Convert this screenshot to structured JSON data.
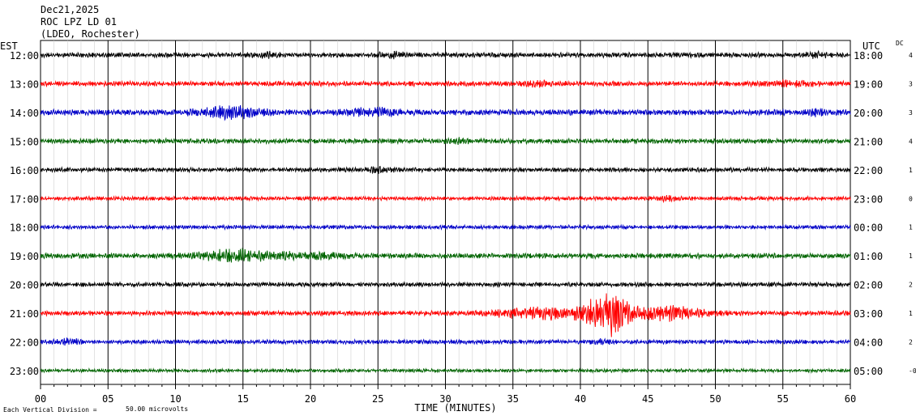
{
  "header": {
    "date": "Dec21,2025",
    "station": "ROC LPZ LD 01",
    "network": "(LDEO, Rochester)"
  },
  "chart_data": {
    "type": "line",
    "title": "",
    "xlabel": "TIME (MINUTES)",
    "x_ticks": [
      "00",
      "05",
      "10",
      "15",
      "20",
      "25",
      "30",
      "35",
      "40",
      "45",
      "50",
      "55",
      "60"
    ],
    "xlim": [
      0,
      60
    ],
    "left_axis_label": "EST",
    "right_axis_label": "UTC",
    "dc_label": "DC",
    "scale_note": "Each Vertical Division =",
    "scale_value": "50.00 microvolts",
    "colors": [
      "#000000",
      "#ff0000",
      "#0000c8",
      "#006400"
    ],
    "series": [
      {
        "est": "12:00",
        "utc": "18:00",
        "dc": "4",
        "amp": 1.0,
        "bursts": [
          {
            "c": 16.5,
            "w": 1.2,
            "a": 0.8
          },
          {
            "c": 26,
            "w": 1.0,
            "a": 0.8
          },
          {
            "c": 57.5,
            "w": 1.2,
            "a": 0.6
          }
        ]
      },
      {
        "est": "13:00",
        "utc": "19:00",
        "dc": "3",
        "amp": 1.0,
        "bursts": [
          {
            "c": 37,
            "w": 1.2,
            "a": 0.7
          },
          {
            "c": 55.5,
            "w": 2.0,
            "a": 0.7
          }
        ]
      },
      {
        "est": "14:00",
        "utc": "20:00",
        "dc": "3",
        "amp": 1.2,
        "bursts": [
          {
            "c": 14,
            "w": 2.2,
            "a": 2.0
          },
          {
            "c": 24.5,
            "w": 1.8,
            "a": 1.2
          },
          {
            "c": 57.5,
            "w": 0.8,
            "a": 0.7
          }
        ]
      },
      {
        "est": "15:00",
        "utc": "21:00",
        "dc": "4",
        "amp": 1.0,
        "bursts": [
          {
            "c": 31,
            "w": 1.0,
            "a": 0.6
          }
        ]
      },
      {
        "est": "16:00",
        "utc": "22:00",
        "dc": "1",
        "amp": 0.9,
        "bursts": [
          {
            "c": 25,
            "w": 1.0,
            "a": 0.8
          }
        ]
      },
      {
        "est": "17:00",
        "utc": "23:00",
        "dc": "0",
        "amp": 0.8,
        "bursts": [
          {
            "c": 46.5,
            "w": 0.8,
            "a": 0.6
          }
        ]
      },
      {
        "est": "18:00",
        "utc": "00:00",
        "dc": "1",
        "amp": 0.8,
        "bursts": []
      },
      {
        "est": "19:00",
        "utc": "01:00",
        "dc": "1",
        "amp": 1.1,
        "bursts": [
          {
            "c": 14.5,
            "w": 2.5,
            "a": 2.0
          },
          {
            "c": 20,
            "w": 2.5,
            "a": 1.0
          }
        ]
      },
      {
        "est": "20:00",
        "utc": "02:00",
        "dc": "2",
        "amp": 0.9,
        "bursts": []
      },
      {
        "est": "21:00",
        "utc": "03:00",
        "dc": "1",
        "amp": 1.0,
        "bursts": [
          {
            "c": 37,
            "w": 3.0,
            "a": 2.0
          },
          {
            "c": 42,
            "w": 1.6,
            "a": 9.0
          },
          {
            "c": 46.5,
            "w": 2.5,
            "a": 2.5
          }
        ]
      },
      {
        "est": "22:00",
        "utc": "04:00",
        "dc": "2",
        "amp": 0.9,
        "bursts": [
          {
            "c": 2,
            "w": 1.0,
            "a": 1.0
          },
          {
            "c": 41.5,
            "w": 0.8,
            "a": 0.6
          }
        ]
      },
      {
        "est": "23:00",
        "utc": "05:00",
        "dc": "-0",
        "amp": 0.7,
        "bursts": []
      }
    ]
  }
}
